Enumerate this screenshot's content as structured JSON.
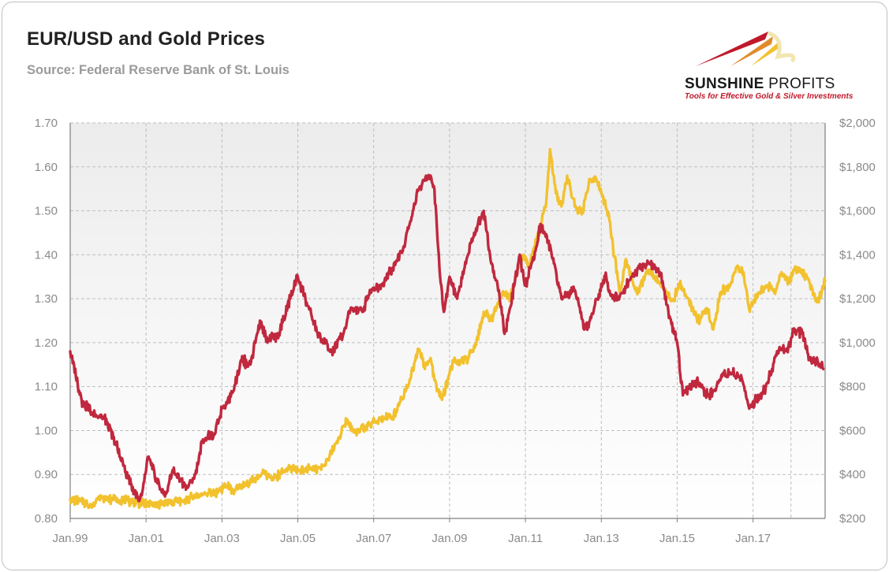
{
  "header": {
    "title": "EUR/USD and Gold Prices",
    "subtitle": "Source: Federal Reserve Bank of St. Louis"
  },
  "logo": {
    "name_bold": "SUNSHINE",
    "name_light": " PROFITS",
    "tagline": "Tools for Effective Gold & Silver Investments"
  },
  "colors": {
    "eurusd": "#c0283e",
    "gold": "#f2c12e",
    "grid": "#bdbdbd",
    "plot_bg_top": "#ececec",
    "plot_bg_bottom": "#ffffff"
  },
  "chart_data": {
    "type": "line",
    "title": "EUR/USD and Gold Prices",
    "subtitle": "Source: Federal Reserve Bank of St. Louis",
    "grid": true,
    "x_range": [
      1999.0,
      2018.9
    ],
    "x_ticks": [
      {
        "x": 1999,
        "label": "Jan.99"
      },
      {
        "x": 2001,
        "label": "Jan.01"
      },
      {
        "x": 2003,
        "label": "Jan.03"
      },
      {
        "x": 2005,
        "label": "Jan.05"
      },
      {
        "x": 2007,
        "label": "Jan.07"
      },
      {
        "x": 2009,
        "label": "Jan.09"
      },
      {
        "x": 2011,
        "label": "Jan.11"
      },
      {
        "x": 2013,
        "label": "Jan.13"
      },
      {
        "x": 2015,
        "label": "Jan.15"
      },
      {
        "x": 2017,
        "label": "Jan.17"
      }
    ],
    "x_grid": [
      1999,
      2001,
      2003,
      2005,
      2007,
      2009,
      2011,
      2013,
      2015,
      2017,
      2018
    ],
    "y_left": {
      "range": [
        0.8,
        1.7
      ],
      "ticks": [
        0.8,
        0.9,
        1.0,
        1.1,
        1.2,
        1.3,
        1.4,
        1.5,
        1.6,
        1.7
      ],
      "tick_labels": [
        "0.80",
        "0.90",
        "1.00",
        "1.10",
        "1.20",
        "1.30",
        "1.40",
        "1.50",
        "1.60",
        "1.70"
      ]
    },
    "y_right": {
      "range": [
        200,
        2000
      ],
      "ticks": [
        200,
        400,
        600,
        800,
        1000,
        1200,
        1400,
        1600,
        1800,
        2000
      ],
      "tick_labels": [
        "$200",
        "$400",
        "$600",
        "$800",
        "$1,000",
        "$1,200",
        "$1,400",
        "$1,600",
        "$1,800",
        "$2,000"
      ]
    },
    "series": [
      {
        "name": "EUR/USD",
        "axis": "left",
        "points": [
          [
            1999.0,
            1.18
          ],
          [
            1999.3,
            1.07
          ],
          [
            1999.6,
            1.04
          ],
          [
            1999.9,
            1.03
          ],
          [
            2000.2,
            0.97
          ],
          [
            2000.4,
            0.92
          ],
          [
            2000.6,
            0.88
          ],
          [
            2000.8,
            0.84
          ],
          [
            2000.9,
            0.86
          ],
          [
            2001.05,
            0.94
          ],
          [
            2001.3,
            0.88
          ],
          [
            2001.5,
            0.85
          ],
          [
            2001.7,
            0.91
          ],
          [
            2001.9,
            0.89
          ],
          [
            2002.1,
            0.87
          ],
          [
            2002.3,
            0.9
          ],
          [
            2002.5,
            0.98
          ],
          [
            2002.8,
            0.99
          ],
          [
            2003.0,
            1.05
          ],
          [
            2003.3,
            1.09
          ],
          [
            2003.5,
            1.16
          ],
          [
            2003.75,
            1.15
          ],
          [
            2004.0,
            1.25
          ],
          [
            2004.2,
            1.2
          ],
          [
            2004.5,
            1.22
          ],
          [
            2004.8,
            1.3
          ],
          [
            2005.0,
            1.35
          ],
          [
            2005.2,
            1.3
          ],
          [
            2005.4,
            1.25
          ],
          [
            2005.6,
            1.21
          ],
          [
            2005.9,
            1.18
          ],
          [
            2006.2,
            1.22
          ],
          [
            2006.4,
            1.28
          ],
          [
            2006.7,
            1.27
          ],
          [
            2006.9,
            1.32
          ],
          [
            2007.2,
            1.33
          ],
          [
            2007.5,
            1.37
          ],
          [
            2007.8,
            1.42
          ],
          [
            2007.95,
            1.47
          ],
          [
            2008.2,
            1.55
          ],
          [
            2008.3,
            1.57
          ],
          [
            2008.5,
            1.58
          ],
          [
            2008.6,
            1.55
          ],
          [
            2008.75,
            1.35
          ],
          [
            2008.85,
            1.27
          ],
          [
            2009.0,
            1.35
          ],
          [
            2009.2,
            1.3
          ],
          [
            2009.45,
            1.39
          ],
          [
            2009.7,
            1.46
          ],
          [
            2009.9,
            1.5
          ],
          [
            2010.1,
            1.38
          ],
          [
            2010.3,
            1.32
          ],
          [
            2010.45,
            1.22
          ],
          [
            2010.6,
            1.28
          ],
          [
            2010.85,
            1.4
          ],
          [
            2011.0,
            1.33
          ],
          [
            2011.3,
            1.42
          ],
          [
            2011.4,
            1.47
          ],
          [
            2011.6,
            1.43
          ],
          [
            2011.75,
            1.38
          ],
          [
            2011.95,
            1.3
          ],
          [
            2012.3,
            1.32
          ],
          [
            2012.55,
            1.23
          ],
          [
            2012.7,
            1.25
          ],
          [
            2012.9,
            1.3
          ],
          [
            2013.1,
            1.35
          ],
          [
            2013.3,
            1.3
          ],
          [
            2013.5,
            1.31
          ],
          [
            2013.8,
            1.35
          ],
          [
            2014.0,
            1.37
          ],
          [
            2014.3,
            1.38
          ],
          [
            2014.55,
            1.36
          ],
          [
            2014.8,
            1.26
          ],
          [
            2015.0,
            1.2
          ],
          [
            2015.15,
            1.08
          ],
          [
            2015.35,
            1.1
          ],
          [
            2015.55,
            1.11
          ],
          [
            2015.8,
            1.08
          ],
          [
            2016.0,
            1.09
          ],
          [
            2016.2,
            1.13
          ],
          [
            2016.45,
            1.13
          ],
          [
            2016.7,
            1.12
          ],
          [
            2016.9,
            1.05
          ],
          [
            2017.1,
            1.07
          ],
          [
            2017.3,
            1.09
          ],
          [
            2017.5,
            1.14
          ],
          [
            2017.7,
            1.19
          ],
          [
            2017.9,
            1.18
          ],
          [
            2018.1,
            1.23
          ],
          [
            2018.3,
            1.22
          ],
          [
            2018.5,
            1.16
          ],
          [
            2018.7,
            1.16
          ],
          [
            2018.85,
            1.14
          ]
        ]
      },
      {
        "name": "Gold",
        "axis": "right",
        "points": [
          [
            1999.0,
            288
          ],
          [
            1999.4,
            270
          ],
          [
            1999.6,
            256
          ],
          [
            1999.75,
            300
          ],
          [
            1999.9,
            290
          ],
          [
            2000.2,
            288
          ],
          [
            2000.5,
            282
          ],
          [
            2000.8,
            272
          ],
          [
            2001.0,
            268
          ],
          [
            2001.3,
            262
          ],
          [
            2001.6,
            270
          ],
          [
            2001.8,
            280
          ],
          [
            2002.0,
            282
          ],
          [
            2002.3,
            305
          ],
          [
            2002.6,
            312
          ],
          [
            2002.9,
            322
          ],
          [
            2003.1,
            350
          ],
          [
            2003.3,
            330
          ],
          [
            2003.6,
            350
          ],
          [
            2003.9,
            385
          ],
          [
            2004.1,
            405
          ],
          [
            2004.3,
            390
          ],
          [
            2004.5,
            395
          ],
          [
            2004.8,
            430
          ],
          [
            2005.0,
            425
          ],
          [
            2005.3,
            425
          ],
          [
            2005.6,
            430
          ],
          [
            2005.8,
            470
          ],
          [
            2006.0,
            540
          ],
          [
            2006.3,
            650
          ],
          [
            2006.5,
            590
          ],
          [
            2006.7,
            610
          ],
          [
            2006.9,
            630
          ],
          [
            2007.2,
            660
          ],
          [
            2007.5,
            660
          ],
          [
            2007.7,
            730
          ],
          [
            2007.9,
            800
          ],
          [
            2008.1,
            920
          ],
          [
            2008.2,
            970
          ],
          [
            2008.35,
            880
          ],
          [
            2008.5,
            930
          ],
          [
            2008.6,
            830
          ],
          [
            2008.8,
            740
          ],
          [
            2008.95,
            830
          ],
          [
            2009.1,
            920
          ],
          [
            2009.3,
            910
          ],
          [
            2009.5,
            930
          ],
          [
            2009.7,
            990
          ],
          [
            2009.9,
            1140
          ],
          [
            2010.1,
            1100
          ],
          [
            2010.4,
            1230
          ],
          [
            2010.6,
            1200
          ],
          [
            2010.8,
            1340
          ],
          [
            2010.95,
            1400
          ],
          [
            2011.1,
            1360
          ],
          [
            2011.35,
            1500
          ],
          [
            2011.55,
            1640
          ],
          [
            2011.65,
            1880
          ],
          [
            2011.8,
            1680
          ],
          [
            2011.95,
            1620
          ],
          [
            2012.1,
            1760
          ],
          [
            2012.3,
            1620
          ],
          [
            2012.5,
            1590
          ],
          [
            2012.7,
            1740
          ],
          [
            2012.85,
            1750
          ],
          [
            2013.0,
            1680
          ],
          [
            2013.2,
            1580
          ],
          [
            2013.35,
            1390
          ],
          [
            2013.5,
            1230
          ],
          [
            2013.65,
            1380
          ],
          [
            2013.85,
            1260
          ],
          [
            2014.0,
            1230
          ],
          [
            2014.2,
            1330
          ],
          [
            2014.45,
            1300
          ],
          [
            2014.7,
            1230
          ],
          [
            2014.9,
            1190
          ],
          [
            2015.05,
            1270
          ],
          [
            2015.3,
            1200
          ],
          [
            2015.55,
            1100
          ],
          [
            2015.8,
            1150
          ],
          [
            2015.95,
            1060
          ],
          [
            2016.15,
            1230
          ],
          [
            2016.4,
            1260
          ],
          [
            2016.55,
            1340
          ],
          [
            2016.75,
            1320
          ],
          [
            2016.9,
            1150
          ],
          [
            2017.1,
            1220
          ],
          [
            2017.35,
            1260
          ],
          [
            2017.6,
            1240
          ],
          [
            2017.75,
            1320
          ],
          [
            2017.95,
            1270
          ],
          [
            2018.1,
            1340
          ],
          [
            2018.3,
            1320
          ],
          [
            2018.5,
            1270
          ],
          [
            2018.65,
            1190
          ],
          [
            2018.8,
            1220
          ],
          [
            2018.9,
            1280
          ]
        ]
      }
    ]
  }
}
